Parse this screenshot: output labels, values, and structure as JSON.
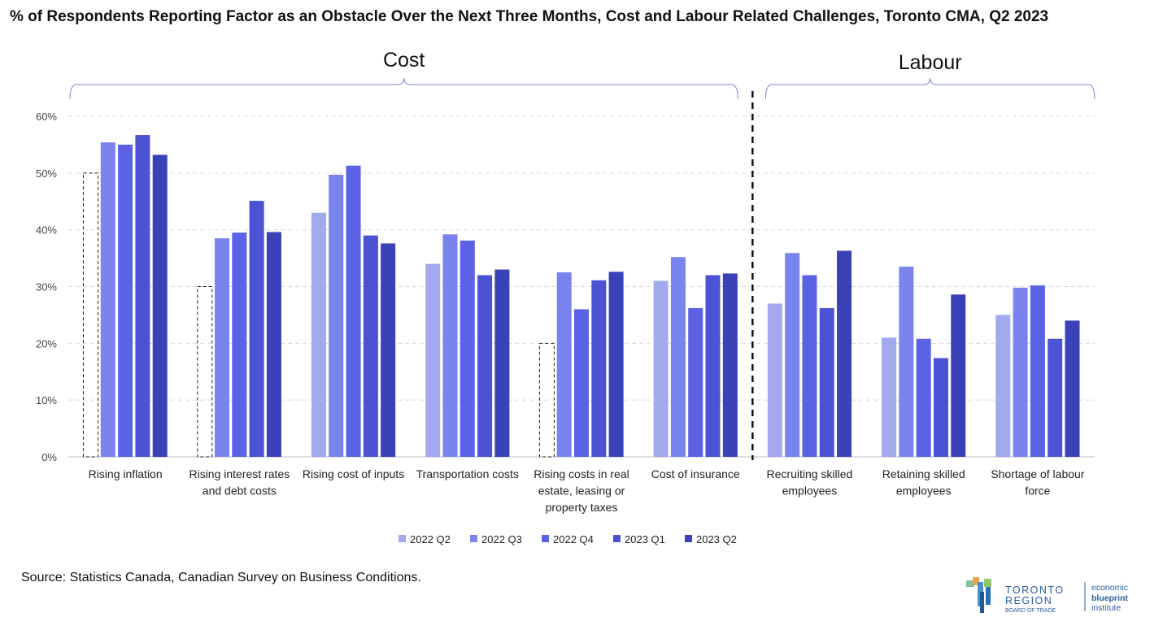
{
  "title": "% of Respondents Reporting Factor as an Obstacle Over the Next Three Months, Cost and Labour Related Challenges, Toronto CMA, Q2 2023",
  "source": "Source: Statistics Canada, Canadian Survey on Business Conditions.",
  "logo": {
    "name_line1": "TORONTO",
    "name_line2": "REGION",
    "name_line3": "BOARD OF TRADE",
    "partner_line1": "economic",
    "partner_line2": "blueprint",
    "partner_line3": "institute"
  },
  "chart_data": {
    "type": "bar",
    "title": "% of Respondents Reporting Factor as an Obstacle Over the Next Three Months, Cost and Labour Related Challenges, Toronto CMA, Q2 2023",
    "ylim": [
      0,
      60
    ],
    "yticks": [
      "0%",
      "10%",
      "20%",
      "30%",
      "40%",
      "50%",
      "60%"
    ],
    "grid": true,
    "legend_position": "bottom",
    "groups": [
      {
        "label": "Cost",
        "category_count": 6
      },
      {
        "label": "Labour",
        "category_count": 3
      }
    ],
    "categories": [
      [
        "Rising inflation"
      ],
      [
        "Rising interest rates",
        "and debt costs"
      ],
      [
        "Rising cost of inputs"
      ],
      [
        "Transportation costs"
      ],
      [
        "Rising costs in real",
        "estate, leasing or",
        "property taxes"
      ],
      [
        "Cost of insurance"
      ],
      [
        "Recruiting skilled",
        "employees"
      ],
      [
        "Retaining skilled",
        "employees"
      ],
      [
        "Shortage of labour",
        "force"
      ]
    ],
    "series": [
      {
        "name": "2022 Q2",
        "color": "#a2a9ec",
        "values": [
          50,
          30,
          43,
          34,
          20,
          31,
          27,
          21,
          25
        ],
        "not_available": [
          true,
          true,
          false,
          false,
          true,
          false,
          false,
          false,
          false
        ]
      },
      {
        "name": "2022 Q3",
        "color": "#7b84ee",
        "values": [
          55.4,
          38.5,
          49.7,
          39.2,
          32.5,
          35.2,
          35.9,
          33.5,
          29.8
        ]
      },
      {
        "name": "2022 Q4",
        "color": "#5b62e5",
        "values": [
          55,
          39.5,
          51.3,
          38.1,
          26,
          26.2,
          32,
          20.8,
          30.2
        ]
      },
      {
        "name": "2023 Q1",
        "color": "#4c52d4",
        "values": [
          56.7,
          45.1,
          39,
          32,
          31.1,
          32,
          26.2,
          17.4,
          20.8
        ]
      },
      {
        "name": "2023 Q2",
        "color": "#3b41b6",
        "values": [
          53.2,
          39.6,
          37.6,
          33,
          32.6,
          32.3,
          36.3,
          28.6,
          24
        ]
      }
    ]
  }
}
